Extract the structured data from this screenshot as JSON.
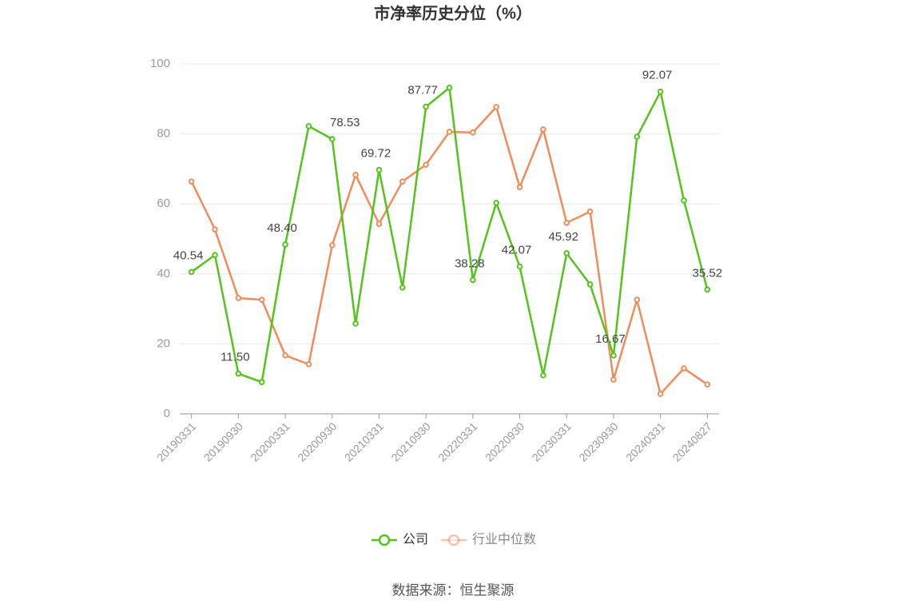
{
  "chart_data": {
    "type": "line",
    "title": "市净率历史分位（%）",
    "source": "数据来源：恒生聚源",
    "categories": [
      "20190331",
      null,
      "20190930",
      null,
      "20200331",
      null,
      "20200930",
      null,
      "20210331",
      null,
      "20210930",
      null,
      "20220331",
      null,
      "20220930",
      null,
      "20230331",
      null,
      "20230930",
      null,
      "20240331",
      null,
      "20240827"
    ],
    "series": [
      {
        "name": "公司",
        "color": "#52c41a",
        "values": [
          40.54,
          45.4,
          11.5,
          9.1,
          48.4,
          82.2,
          78.53,
          25.8,
          69.72,
          36.1,
          87.77,
          93.2,
          38.28,
          60.3,
          42.07,
          11.0,
          45.92,
          37.0,
          16.67,
          79.2,
          92.07,
          61.0,
          35.52
        ],
        "value_labels": [
          "40.54",
          null,
          "11.50",
          null,
          "48.40",
          null,
          "78.53",
          null,
          "69.72",
          null,
          "87.77",
          null,
          "38.28",
          null,
          "42.07",
          null,
          "45.92",
          null,
          "16.67",
          null,
          "92.07",
          null,
          "35.52"
        ]
      },
      {
        "name": "行业中位数",
        "color": "#f08c5a",
        "values": [
          66.4,
          52.7,
          33.1,
          32.6,
          16.7,
          14.2,
          48.2,
          68.3,
          54.3,
          66.4,
          71.2,
          80.6,
          80.4,
          87.7,
          64.8,
          81.3,
          54.6,
          57.8,
          9.8,
          32.6,
          5.7,
          13.0,
          8.4
        ]
      }
    ],
    "ylim": [
      0,
      100
    ],
    "yticks": [
      0,
      20,
      40,
      60,
      80,
      100
    ],
    "grid": true,
    "legend": "bottom"
  }
}
